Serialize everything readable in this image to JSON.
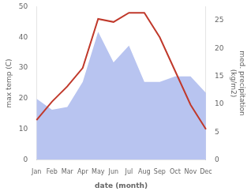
{
  "chart_data": {
    "type": "line",
    "xlabel": "date (month)",
    "ylabel": "max temp (C)",
    "y2label": "med. precipitation\n(kg/m2)",
    "categories": [
      "Jan",
      "Feb",
      "Mar",
      "Apr",
      "May",
      "Jun",
      "Jul",
      "Aug",
      "Sep",
      "Oct",
      "Nov",
      "Dec"
    ],
    "series": [
      {
        "type": "area",
        "color": "#b8c4f0",
        "axis": "y2",
        "values": [
          11,
          9,
          9.5,
          14,
          23,
          17.5,
          20.5,
          14,
          14,
          15,
          15,
          12
        ]
      },
      {
        "type": "line",
        "color": "#c0392b",
        "values": [
          13,
          19,
          24,
          30,
          46,
          45,
          48,
          48,
          40,
          29,
          18,
          10
        ]
      }
    ],
    "ylim": [
      0,
      50
    ],
    "yticks": [
      0,
      10,
      20,
      30,
      40,
      50
    ],
    "y2lim": [
      0,
      27.5
    ],
    "y2ticks": [
      0,
      5,
      10,
      15,
      20,
      25
    ],
    "grid": false
  }
}
